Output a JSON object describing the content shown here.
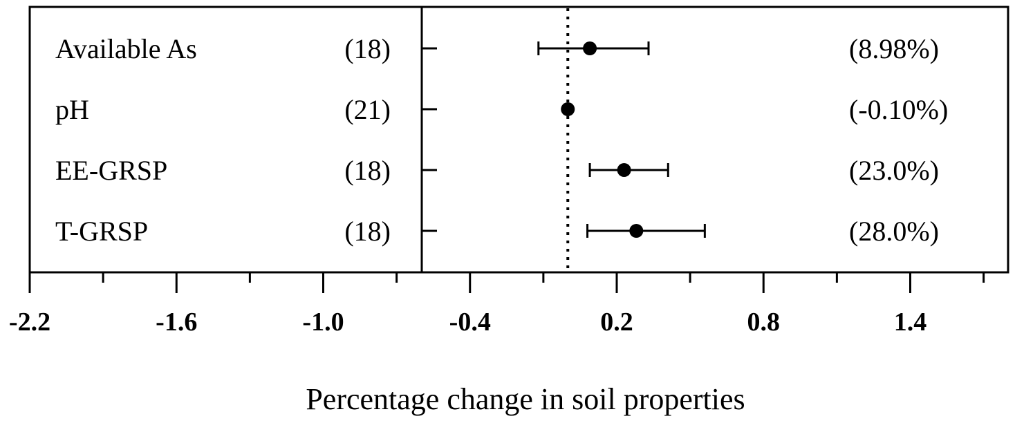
{
  "chart_data": {
    "type": "forest",
    "title": "",
    "xlabel": "Percentage change in soil properties",
    "ylabel": "",
    "xlim": [
      -2.2,
      1.8
    ],
    "x_ticks": [
      "-2.2",
      "-1.6",
      "-1.0",
      "-0.4",
      "0.2",
      "0.8",
      "1.4"
    ],
    "x_tick_values": [
      -2.2,
      -1.6,
      -1.0,
      -0.4,
      0.2,
      0.8,
      1.4
    ],
    "reference_line": 0.0,
    "grid": false,
    "rows": [
      {
        "label": "Available As",
        "n": "(18)",
        "effect": 0.09,
        "ci_low": -0.12,
        "ci_high": 0.33,
        "annotation": "(8.98%)"
      },
      {
        "label": "pH",
        "n": "(21)",
        "effect": 0.0,
        "ci_low": 0.0,
        "ci_high": 0.0,
        "annotation": "(-0.10%)"
      },
      {
        "label": "EE-GRSP",
        "n": "(18)",
        "effect": 0.23,
        "ci_low": 0.09,
        "ci_high": 0.41,
        "annotation": "(23.0%)"
      },
      {
        "label": "T-GRSP",
        "n": "(18)",
        "effect": 0.28,
        "ci_low": 0.08,
        "ci_high": 0.56,
        "annotation": "(28.0%)"
      }
    ]
  }
}
